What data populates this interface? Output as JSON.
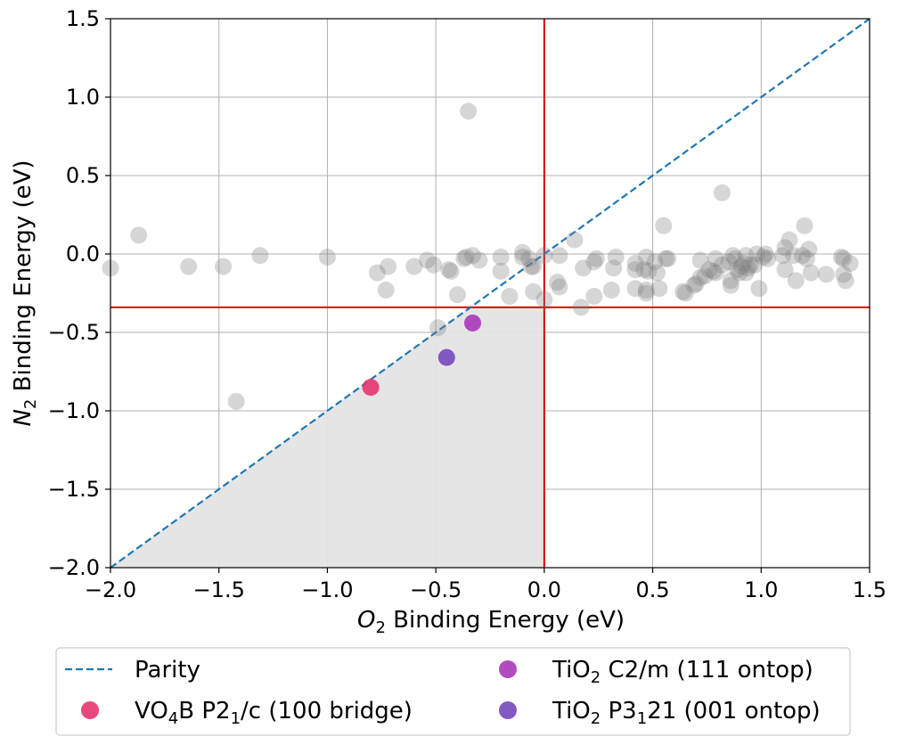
{
  "chart_data": {
    "type": "scatter",
    "xlim": [
      -2.0,
      1.5
    ],
    "ylim": [
      -2.0,
      1.5
    ],
    "xticks": [
      -2.0,
      -1.5,
      -1.0,
      -0.5,
      0.0,
      0.5,
      1.0,
      1.5
    ],
    "yticks": [
      -2.0,
      -1.5,
      -1.0,
      -0.5,
      0.0,
      0.5,
      1.0,
      1.5
    ],
    "xtick_labels": [
      "−2.0",
      "−1.5",
      "−1.0",
      "−0.5",
      "0.0",
      "0.5",
      "1.0",
      "1.5"
    ],
    "ytick_labels": [
      "−2.0",
      "−1.5",
      "−1.0",
      "−0.5",
      "0.0",
      "0.5",
      "1.0",
      "1.5"
    ],
    "xlabel": {
      "main": "O",
      "sub": "2",
      "rest": " Binding Energy (eV)"
    },
    "ylabel": {
      "main": "N",
      "sub": "2",
      "rest": " Binding Energy (eV)"
    },
    "grid": true,
    "threshold_lines": {
      "x": 0.0,
      "y": -0.34,
      "color": "#e00000"
    },
    "shaded_region": {
      "description_color": "#e4e4e4"
    },
    "parity": {
      "name": "Parity",
      "color": "#1f77b4"
    },
    "background_points": {
      "color": "#808080",
      "points": [
        [
          -2.0,
          -0.09
        ],
        [
          -1.87,
          0.12
        ],
        [
          -1.64,
          -0.08
        ],
        [
          -1.48,
          -0.08
        ],
        [
          -1.42,
          -0.94
        ],
        [
          -1.31,
          -0.01
        ],
        [
          -1.0,
          -0.02
        ],
        [
          -0.77,
          -0.12
        ],
        [
          -0.72,
          -0.08
        ],
        [
          -0.73,
          -0.23
        ],
        [
          -0.6,
          -0.08
        ],
        [
          -0.54,
          -0.04
        ],
        [
          -0.51,
          -0.07
        ],
        [
          -0.49,
          -0.47
        ],
        [
          -0.44,
          -0.1
        ],
        [
          -0.43,
          -0.11
        ],
        [
          -0.4,
          -0.26
        ],
        [
          -0.37,
          -0.03
        ],
        [
          -0.36,
          -0.02
        ],
        [
          -0.35,
          0.91
        ],
        [
          -0.33,
          -0.01
        ],
        [
          -0.3,
          -0.04
        ],
        [
          -0.2,
          -0.02
        ],
        [
          -0.2,
          -0.11
        ],
        [
          -0.16,
          -0.27
        ],
        [
          -0.1,
          0.01
        ],
        [
          -0.1,
          -0.02
        ],
        [
          -0.07,
          -0.03
        ],
        [
          -0.06,
          -0.08
        ],
        [
          -0.05,
          -0.24
        ],
        [
          -0.05,
          -0.08
        ],
        [
          0.0,
          -0.01
        ],
        [
          0.0,
          -0.29
        ],
        [
          0.06,
          -0.18
        ],
        [
          0.07,
          -0.21
        ],
        [
          0.07,
          -0.01
        ],
        [
          0.14,
          0.09
        ],
        [
          0.17,
          -0.34
        ],
        [
          0.18,
          -0.09
        ],
        [
          0.23,
          -0.27
        ],
        [
          0.23,
          -0.05
        ],
        [
          0.24,
          -0.03
        ],
        [
          0.31,
          -0.23
        ],
        [
          0.32,
          -0.09
        ],
        [
          0.33,
          -0.02
        ],
        [
          0.42,
          -0.06
        ],
        [
          0.42,
          -0.22
        ],
        [
          0.42,
          -0.1
        ],
        [
          0.46,
          -0.1
        ],
        [
          0.47,
          -0.02
        ],
        [
          0.47,
          -0.25
        ],
        [
          0.47,
          -0.23
        ],
        [
          0.48,
          -0.11
        ],
        [
          0.51,
          -0.05
        ],
        [
          0.52,
          -0.12
        ],
        [
          0.53,
          -0.22
        ],
        [
          0.55,
          0.18
        ],
        [
          0.56,
          -0.03
        ],
        [
          0.57,
          -0.03
        ],
        [
          0.64,
          -0.24
        ],
        [
          0.65,
          -0.25
        ],
        [
          0.69,
          -0.2
        ],
        [
          0.7,
          -0.19
        ],
        [
          0.72,
          -0.04
        ],
        [
          0.72,
          -0.15
        ],
        [
          0.74,
          -0.14
        ],
        [
          0.76,
          -0.1
        ],
        [
          0.78,
          -0.11
        ],
        [
          0.79,
          -0.12
        ],
        [
          0.79,
          -0.03
        ],
        [
          0.82,
          0.39
        ],
        [
          0.82,
          -0.07
        ],
        [
          0.85,
          -0.05
        ],
        [
          0.86,
          -0.17
        ],
        [
          0.86,
          -0.2
        ],
        [
          0.87,
          -0.01
        ],
        [
          0.88,
          -0.03
        ],
        [
          0.89,
          -0.1
        ],
        [
          0.9,
          -0.12
        ],
        [
          0.91,
          -0.08
        ],
        [
          0.92,
          -0.06
        ],
        [
          0.93,
          -0.01
        ],
        [
          0.93,
          -0.12
        ],
        [
          0.94,
          -0.09
        ],
        [
          0.95,
          -0.07
        ],
        [
          0.97,
          -0.07
        ],
        [
          0.98,
          0.0
        ],
        [
          0.99,
          -0.22
        ],
        [
          1.01,
          -0.02
        ],
        [
          1.02,
          0.0
        ],
        [
          1.03,
          -0.03
        ],
        [
          1.1,
          -0.01
        ],
        [
          1.11,
          -0.1
        ],
        [
          1.11,
          0.04
        ],
        [
          1.13,
          0.09
        ],
        [
          1.15,
          -0.01
        ],
        [
          1.16,
          -0.17
        ],
        [
          1.19,
          -0.01
        ],
        [
          1.2,
          0.18
        ],
        [
          1.21,
          -0.03
        ],
        [
          1.22,
          0.03
        ],
        [
          1.23,
          -0.12
        ],
        [
          1.3,
          -0.13
        ],
        [
          1.37,
          -0.02
        ],
        [
          1.38,
          -0.03
        ],
        [
          1.38,
          -0.13
        ],
        [
          1.39,
          -0.17
        ],
        [
          1.41,
          -0.06
        ]
      ]
    },
    "series": [
      {
        "name": "VO₄B P2₁/c (100 bridge)",
        "x": -0.8,
        "y": -0.85,
        "color": "#e8336f"
      },
      {
        "name": "TiO₂ C2/m (111 ontop)",
        "x": -0.33,
        "y": -0.44,
        "color": "#a838b9"
      },
      {
        "name": "TiO₂ P3₁ 21 (001 ontop)",
        "x": -0.45,
        "y": -0.66,
        "color": "#7547be"
      }
    ],
    "legend": {
      "placement": "bottom, below plot",
      "entries": [
        {
          "base": "Parity",
          "parts": []
        },
        {
          "parts": [
            [
              "VO",
              ""
            ],
            [
              "4",
              "sub"
            ],
            [
              "B P2",
              ""
            ],
            [
              "1",
              "sub"
            ],
            [
              "/c (100 bridge)",
              ""
            ]
          ]
        },
        {
          "parts": [
            [
              "TiO",
              ""
            ],
            [
              "2",
              "sub"
            ],
            [
              " C2/m (111 ontop)",
              ""
            ]
          ]
        },
        {
          "parts": [
            [
              "TiO",
              ""
            ],
            [
              "2",
              "sub"
            ],
            [
              " P3",
              ""
            ],
            [
              "1",
              "sub"
            ],
            [
              "21 (001 ontop)",
              ""
            ]
          ]
        }
      ]
    }
  }
}
